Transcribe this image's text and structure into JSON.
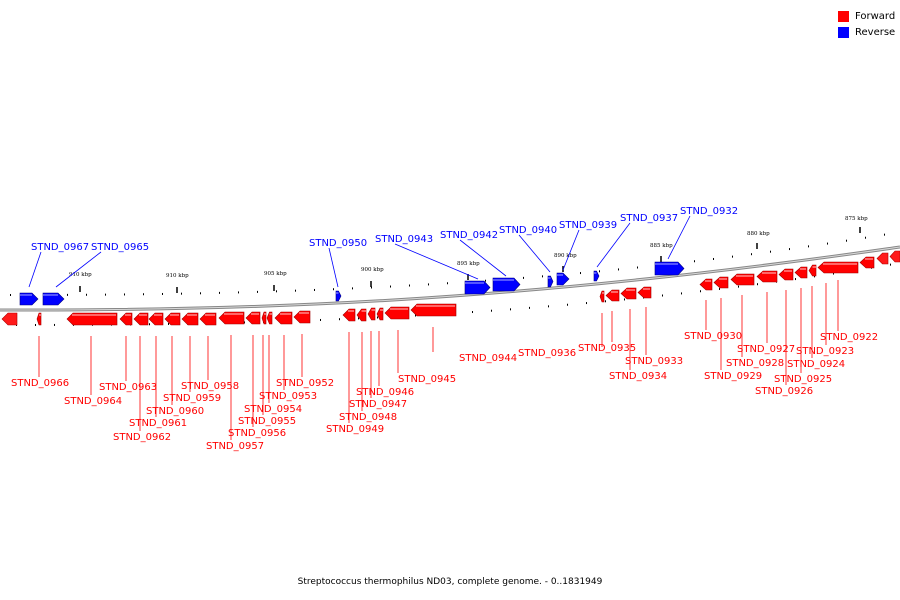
{
  "legend": {
    "forward": {
      "label": "Forward",
      "color": "#ff0000"
    },
    "reverse": {
      "label": "Reverse",
      "color": "#0000ff"
    }
  },
  "caption": "Streptococcus thermophilus ND03, complete genome. - 0..1831949",
  "ticks": [
    "875 kbp",
    "880 kbp",
    "885 kbp",
    "890 kbp",
    "895 kbp",
    "900 kbp",
    "905 kbp",
    "910 kbp",
    "910 kbp"
  ],
  "genes": [
    {
      "name": "STND_0967",
      "strand": "reverse"
    },
    {
      "name": "STND_0965",
      "strand": "reverse"
    },
    {
      "name": "STND_0950",
      "strand": "reverse"
    },
    {
      "name": "STND_0943",
      "strand": "reverse"
    },
    {
      "name": "STND_0942",
      "strand": "reverse"
    },
    {
      "name": "STND_0940",
      "strand": "reverse"
    },
    {
      "name": "STND_0939",
      "strand": "reverse"
    },
    {
      "name": "STND_0937",
      "strand": "reverse"
    },
    {
      "name": "STND_0932",
      "strand": "reverse"
    },
    {
      "name": "STND_0966",
      "strand": "forward"
    },
    {
      "name": "STND_0964",
      "strand": "forward"
    },
    {
      "name": "STND_0963",
      "strand": "forward"
    },
    {
      "name": "STND_0962",
      "strand": "forward"
    },
    {
      "name": "STND_0961",
      "strand": "forward"
    },
    {
      "name": "STND_0960",
      "strand": "forward"
    },
    {
      "name": "STND_0959",
      "strand": "forward"
    },
    {
      "name": "STND_0958",
      "strand": "forward"
    },
    {
      "name": "STND_0957",
      "strand": "forward"
    },
    {
      "name": "STND_0956",
      "strand": "forward"
    },
    {
      "name": "STND_0955",
      "strand": "forward"
    },
    {
      "name": "STND_0954",
      "strand": "forward"
    },
    {
      "name": "STND_0953",
      "strand": "forward"
    },
    {
      "name": "STND_0952",
      "strand": "forward"
    },
    {
      "name": "STND_0949",
      "strand": "forward"
    },
    {
      "name": "STND_0948",
      "strand": "forward"
    },
    {
      "name": "STND_0947",
      "strand": "forward"
    },
    {
      "name": "STND_0946",
      "strand": "forward"
    },
    {
      "name": "STND_0945",
      "strand": "forward"
    },
    {
      "name": "STND_0944",
      "strand": "forward"
    },
    {
      "name": "STND_0936",
      "strand": "forward"
    },
    {
      "name": "STND_0935",
      "strand": "forward"
    },
    {
      "name": "STND_0934",
      "strand": "forward"
    },
    {
      "name": "STND_0933",
      "strand": "forward"
    },
    {
      "name": "STND_0930",
      "strand": "forward"
    },
    {
      "name": "STND_0929",
      "strand": "forward"
    },
    {
      "name": "STND_0928",
      "strand": "forward"
    },
    {
      "name": "STND_0927",
      "strand": "forward"
    },
    {
      "name": "STND_0926",
      "strand": "forward"
    },
    {
      "name": "STND_0925",
      "strand": "forward"
    },
    {
      "name": "STND_0924",
      "strand": "forward"
    },
    {
      "name": "STND_0923",
      "strand": "forward"
    },
    {
      "name": "STND_0922",
      "strand": "forward"
    }
  ]
}
